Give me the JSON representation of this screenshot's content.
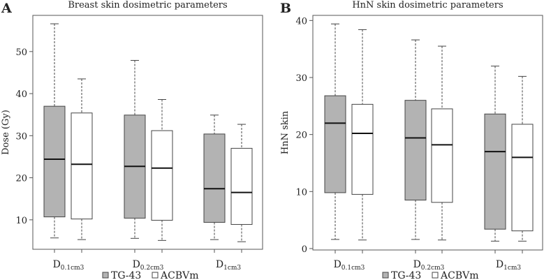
{
  "legend": {
    "items": [
      {
        "label": "TG-43",
        "color": "#b3b3b3"
      },
      {
        "label": "ACBVm",
        "color": "#ffffff"
      }
    ],
    "placement": "bottom"
  },
  "chart_data": [
    {
      "type": "box",
      "panel_letter": "A",
      "title": "Breast skin dosimetric parameters",
      "ylabel": "Dose (Gy)",
      "xlabel": "",
      "ylim": [
        3,
        58.6
      ],
      "yticks": [
        10,
        20,
        30,
        40,
        50
      ],
      "categories": [
        {
          "main": "D",
          "sub": "0.1cm3"
        },
        {
          "main": "D",
          "sub": "0.2cm3"
        },
        {
          "main": "D",
          "sub": "1cm3"
        }
      ],
      "series": [
        {
          "name": "TG-43",
          "color": "#b3b3b3",
          "boxes": [
            {
              "min": 5.7,
              "q1": 10.7,
              "median": 24.4,
              "q3": 37.0,
              "max": 56.6
            },
            {
              "min": 5.6,
              "q1": 10.4,
              "median": 22.7,
              "q3": 34.9,
              "max": 47.9
            },
            {
              "min": 5.3,
              "q1": 9.4,
              "median": 17.4,
              "q3": 30.4,
              "max": 34.9
            }
          ]
        },
        {
          "name": "ACBVm",
          "color": "#ffffff",
          "boxes": [
            {
              "min": 5.3,
              "q1": 10.2,
              "median": 23.2,
              "q3": 35.4,
              "max": 43.5
            },
            {
              "min": 5.1,
              "q1": 9.9,
              "median": 22.3,
              "q3": 31.2,
              "max": 38.6
            },
            {
              "min": 4.8,
              "q1": 8.9,
              "median": 16.5,
              "q3": 27.0,
              "max": 32.7
            }
          ]
        }
      ]
    },
    {
      "type": "box",
      "panel_letter": "B",
      "title": "HnN skin dosimetric parameters",
      "ylabel": "HnN skin",
      "xlabel": "",
      "ylim": [
        -0.25,
        40.9
      ],
      "yticks": [
        0,
        10,
        20,
        30,
        40
      ],
      "categories": [
        {
          "main": "D",
          "sub": "0.1cm3"
        },
        {
          "main": "D",
          "sub": "0.2cm3"
        },
        {
          "main": "D",
          "sub": "1cm3"
        }
      ],
      "series": [
        {
          "name": "TG-43",
          "color": "#b3b3b3",
          "boxes": [
            {
              "min": 1.6,
              "q1": 9.8,
              "median": 22.0,
              "q3": 26.8,
              "max": 39.4
            },
            {
              "min": 1.6,
              "q1": 8.5,
              "median": 19.4,
              "q3": 26.0,
              "max": 36.6
            },
            {
              "min": 1.3,
              "q1": 3.4,
              "median": 17.0,
              "q3": 23.6,
              "max": 32.0
            }
          ]
        },
        {
          "name": "ACBVm",
          "color": "#ffffff",
          "boxes": [
            {
              "min": 1.5,
              "q1": 9.5,
              "median": 20.2,
              "q3": 25.3,
              "max": 38.4
            },
            {
              "min": 1.5,
              "q1": 8.1,
              "median": 18.2,
              "q3": 24.5,
              "max": 35.5
            },
            {
              "min": 1.3,
              "q1": 3.1,
              "median": 16.0,
              "q3": 21.8,
              "max": 30.2
            }
          ]
        }
      ]
    }
  ]
}
